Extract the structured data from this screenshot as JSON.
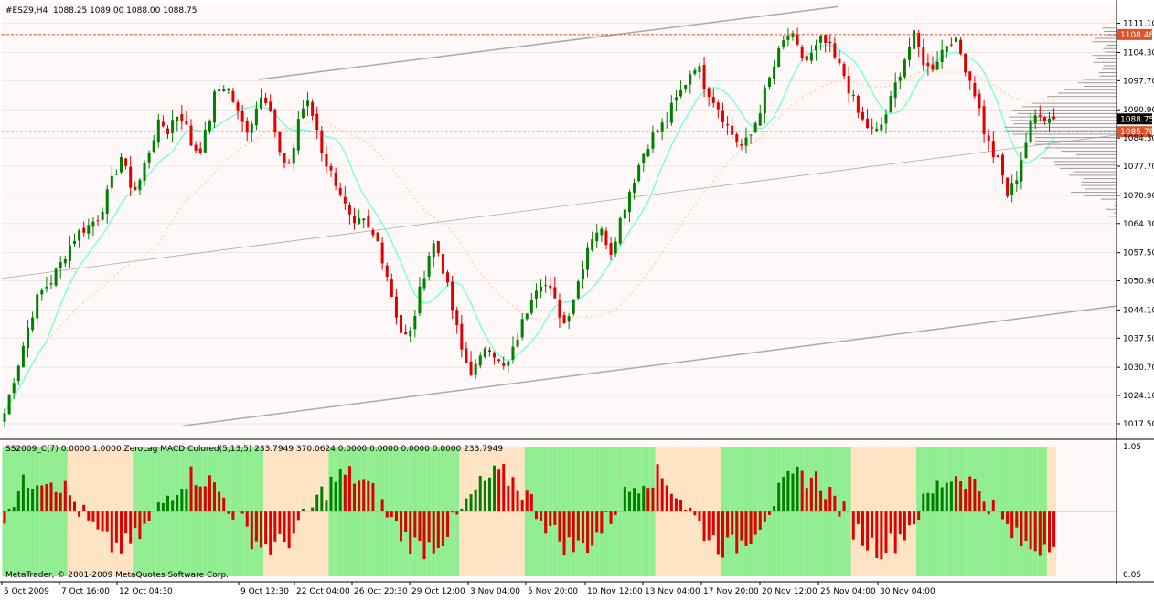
{
  "window": {
    "symbol_header": "#ESZ9,H4",
    "ohlc_header": "1088.25 1089.00 1088.00 1088.75",
    "copyright": "MetaTrader, © 2001-2009 MetaQuotes Software Corp."
  },
  "colors": {
    "background": "#FFF8F8",
    "bull_candle": "#008000",
    "bear_candle": "#E00000",
    "ma_fast": "#7FFFD4",
    "ma_slow": "#FFDAB9",
    "channel": "#A9A9A9",
    "level_line": "#E0502A",
    "sub_green_zone": "#90EE90",
    "sub_peach_zone": "#FFE4C4"
  },
  "subwindow": {
    "header": "SS2009_C(7) 0.0000 1.0000  ZeroLag MACD Colored(5,13,5) 233.7949 370.0624 0.0000 0.0000 0.0000 0.0000 233.7949",
    "scale_top": "1.05",
    "scale_bottom": "0.05"
  },
  "chart_data": {
    "type": "candlestick",
    "timeframe": "H4",
    "price_axis": {
      "ylim": [
        1014.5,
        1115.5
      ],
      "ticks": [
        "1111.10",
        "1104.30",
        "1097.70",
        "1090.90",
        "1084.30",
        "1077.70",
        "1070.90",
        "1064.30",
        "1057.50",
        "1050.90",
        "1044.10",
        "1037.50",
        "1030.70",
        "1024.10",
        "1017.50"
      ]
    },
    "current_price": {
      "label": "1088.75",
      "value": 1088.75
    },
    "price_levels": [
      {
        "label": "1108.48",
        "value": 1108.48
      },
      {
        "label": "1085.78",
        "value": 1085.78
      }
    ],
    "time_axis": [
      "5 Oct 2009",
      "7 Oct 16:00",
      "12 Oct 04:30",
      "9 Oct 12:30",
      "22 Oct 04:00",
      "26 Oct 20:30",
      "29 Oct 12:00",
      "3 Nov 04:00",
      "5 Nov 20:00",
      "10 Nov 12:00",
      "13 Nov 04:00",
      "17 Nov 20:00",
      "20 Nov 12:00",
      "25 Nov 04:00",
      "30 Nov 04:00"
    ],
    "price_path": [
      1020,
      1027,
      1033,
      1040,
      1046,
      1049,
      1051,
      1054,
      1058,
      1061,
      1063,
      1064,
      1066,
      1070,
      1075,
      1080,
      1074,
      1072,
      1078,
      1084,
      1088,
      1086,
      1090,
      1089,
      1083,
      1081,
      1086,
      1094,
      1097,
      1095,
      1090,
      1086,
      1089,
      1095,
      1093,
      1083,
      1077,
      1080,
      1091,
      1092,
      1088,
      1080,
      1076,
      1073,
      1067,
      1063,
      1065,
      1062,
      1060,
      1054,
      1046,
      1039,
      1037,
      1045,
      1053,
      1060,
      1057,
      1049,
      1041,
      1033,
      1030,
      1031,
      1037,
      1034,
      1030,
      1032,
      1038,
      1043,
      1049,
      1051,
      1049,
      1045,
      1041,
      1046,
      1052,
      1059,
      1063,
      1062,
      1058,
      1064,
      1070,
      1075,
      1080,
      1084,
      1086,
      1088,
      1092,
      1095,
      1099,
      1102,
      1097,
      1094,
      1091,
      1087,
      1084,
      1082,
      1085,
      1090,
      1096,
      1101,
      1106,
      1109,
      1105,
      1102,
      1104,
      1107,
      1106,
      1102,
      1099,
      1094,
      1089,
      1087,
      1085,
      1088,
      1093,
      1099,
      1104,
      1108,
      1103,
      1100,
      1103,
      1106,
      1108,
      1104,
      1099,
      1094,
      1086,
      1081,
      1078,
      1071,
      1074,
      1081,
      1087,
      1091,
      1089,
      1088.75
    ],
    "bars_per_window": 239,
    "legend": "none",
    "grid": true
  }
}
